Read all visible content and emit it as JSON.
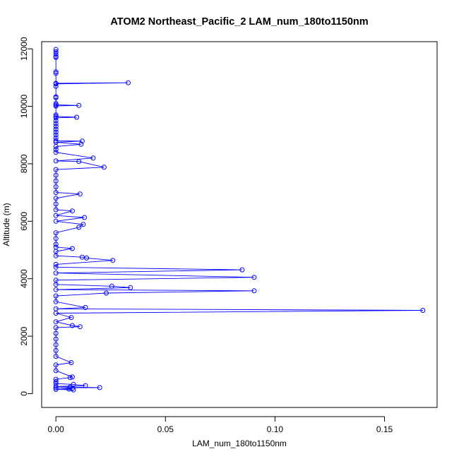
{
  "chart_data": {
    "type": "line",
    "title": "ATOM2 Northeast_Pacific_2 LAM_num_180to1150nm",
    "xlabel": "LAM_num_180to1150nm",
    "ylabel": "Altitude (m)",
    "xlim": [
      -0.0065,
      0.174
    ],
    "ylim": [
      -480,
      12250
    ],
    "xticks": [
      0.0,
      0.05,
      0.1,
      0.15
    ],
    "xtick_labels": [
      "0.00",
      "0.05",
      "0.10",
      "0.15"
    ],
    "yticks": [
      0,
      2000,
      4000,
      6000,
      8000,
      10000,
      12000
    ],
    "ytick_labels": [
      "0",
      "2000",
      "4000",
      "6000",
      "8000",
      "10000",
      "12000"
    ],
    "grid": false,
    "legend": "none",
    "series": [
      {
        "color": "#0000ff",
        "marker": "open-circle",
        "points": [
          [
            0.0,
            11980
          ],
          [
            0.0,
            11900
          ],
          [
            0.0,
            11820
          ],
          [
            0.0,
            11740
          ],
          [
            0.0,
            11700
          ],
          [
            0.0,
            11200
          ],
          [
            0.0,
            11150
          ],
          [
            0.0,
            10800
          ],
          [
            0.033,
            10820
          ],
          [
            0.0,
            10780
          ],
          [
            0.0,
            10700
          ],
          [
            0.0,
            10330
          ],
          [
            0.0,
            10300
          ],
          [
            0.0,
            10100
          ],
          [
            0.0,
            10050
          ],
          [
            0.0105,
            10030
          ],
          [
            0.0,
            10010
          ],
          [
            0.0,
            9700
          ],
          [
            0.0,
            9650
          ],
          [
            0.0095,
            9620
          ],
          [
            0.0,
            9600
          ],
          [
            0.0,
            9500
          ],
          [
            0.0,
            9400
          ],
          [
            0.0,
            9300
          ],
          [
            0.0,
            9200
          ],
          [
            0.0,
            9100
          ],
          [
            0.0,
            9000
          ],
          [
            0.0,
            8900
          ],
          [
            0.0,
            8800
          ],
          [
            0.012,
            8790
          ],
          [
            0.0,
            8750
          ],
          [
            0.0115,
            8680
          ],
          [
            0.0,
            8600
          ],
          [
            0.0,
            8500
          ],
          [
            0.0,
            8400
          ],
          [
            0.017,
            8200
          ],
          [
            0.0,
            8100
          ],
          [
            0.0105,
            8080
          ],
          [
            0.022,
            7880
          ],
          [
            0.0,
            7800
          ],
          [
            0.0,
            7600
          ],
          [
            0.0,
            7400
          ],
          [
            0.0,
            7200
          ],
          [
            0.0,
            7000
          ],
          [
            0.011,
            6950
          ],
          [
            0.0,
            6800
          ],
          [
            0.0,
            6600
          ],
          [
            0.0,
            6400
          ],
          [
            0.0075,
            6360
          ],
          [
            0.0,
            6200
          ],
          [
            0.013,
            6130
          ],
          [
            0.0,
            6000
          ],
          [
            0.0125,
            5890
          ],
          [
            0.0105,
            5790
          ],
          [
            0.0,
            5600
          ],
          [
            0.0,
            5400
          ],
          [
            0.0,
            5200
          ],
          [
            0.0,
            5100
          ],
          [
            0.0075,
            5050
          ],
          [
            0.0,
            4950
          ],
          [
            0.0,
            4800
          ],
          [
            0.012,
            4750
          ],
          [
            0.014,
            4720
          ],
          [
            0.026,
            4640
          ],
          [
            0.0,
            4500
          ],
          [
            0.0,
            4400
          ],
          [
            0.085,
            4310
          ],
          [
            0.0,
            4200
          ],
          [
            0.0905,
            4050
          ],
          [
            0.0,
            3950
          ],
          [
            0.0,
            3800
          ],
          [
            0.0255,
            3740
          ],
          [
            0.034,
            3690
          ],
          [
            0.0,
            3620
          ],
          [
            0.0905,
            3580
          ],
          [
            0.023,
            3500
          ],
          [
            0.0,
            3400
          ],
          [
            0.0,
            3200
          ],
          [
            0.0135,
            3000
          ],
          [
            0.0,
            2950
          ],
          [
            0.1675,
            2900
          ],
          [
            0.0,
            2800
          ],
          [
            0.007,
            2650
          ],
          [
            0.0,
            2500
          ],
          [
            0.0075,
            2370
          ],
          [
            0.011,
            2330
          ],
          [
            0.0,
            2300
          ],
          [
            0.0,
            2100
          ],
          [
            0.0,
            1900
          ],
          [
            0.0,
            1700
          ],
          [
            0.0,
            1500
          ],
          [
            0.0,
            1300
          ],
          [
            0.007,
            1080
          ],
          [
            0.0,
            1000
          ],
          [
            0.0,
            800
          ],
          [
            0.0075,
            580
          ],
          [
            0.0065,
            560
          ],
          [
            0.0,
            500
          ],
          [
            0.0,
            420
          ],
          [
            0.0,
            350
          ],
          [
            0.008,
            320
          ],
          [
            0.0135,
            280
          ],
          [
            0.0,
            250
          ],
          [
            0.0065,
            230
          ],
          [
            0.02,
            210
          ],
          [
            0.0,
            200
          ],
          [
            0.0075,
            180
          ],
          [
            0.006,
            160
          ],
          [
            0.0,
            150
          ],
          [
            0.008,
            130
          ]
        ]
      }
    ]
  }
}
